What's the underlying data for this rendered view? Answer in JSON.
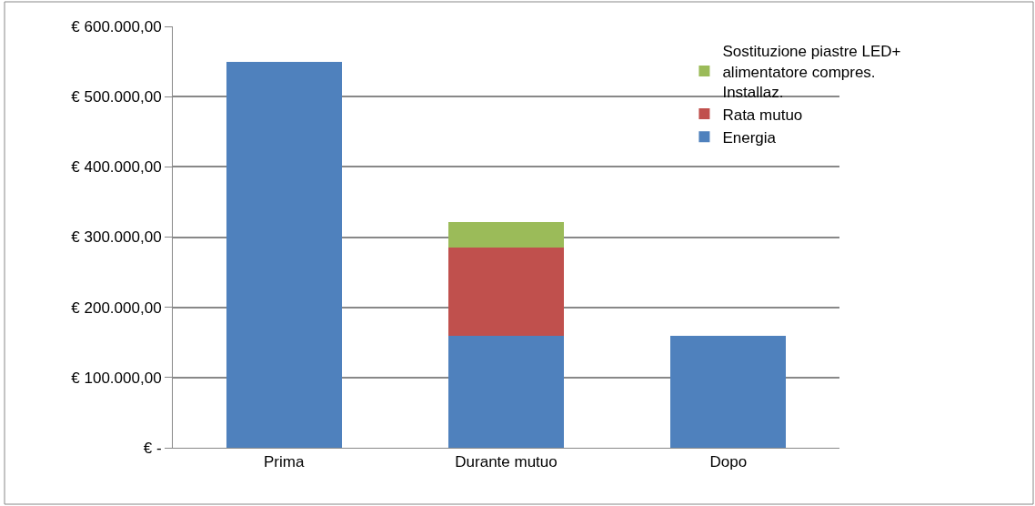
{
  "chart_data": {
    "type": "bar",
    "stacked": true,
    "categories": [
      "Prima",
      "Durante mutuo",
      "Dopo"
    ],
    "series": [
      {
        "name": "Energia",
        "color": "#4f81bd",
        "values": [
          550000,
          160000,
          160000
        ]
      },
      {
        "name": "Rata mutuo",
        "color": "#c0504d",
        "values": [
          null,
          125000,
          null
        ]
      },
      {
        "name": "Sostituzione piastre LED+ alimentatore compres. Installaz.",
        "color": "#9bbb59",
        "values": [
          null,
          37000,
          null
        ]
      }
    ],
    "ylim": [
      0,
      600000
    ],
    "yticks": [
      {
        "value": 0,
        "label": "€ -"
      },
      {
        "value": 100000,
        "label": "€ 100.000,00"
      },
      {
        "value": 200000,
        "label": "€ 200.000,00"
      },
      {
        "value": 300000,
        "label": "€ 300.000,00"
      },
      {
        "value": 400000,
        "label": "€ 400.000,00"
      },
      {
        "value": 500000,
        "label": "€ 500.000,00"
      },
      {
        "value": 600000,
        "label": "€ 600.000,00"
      }
    ],
    "grid": "y",
    "legend": "top right"
  }
}
